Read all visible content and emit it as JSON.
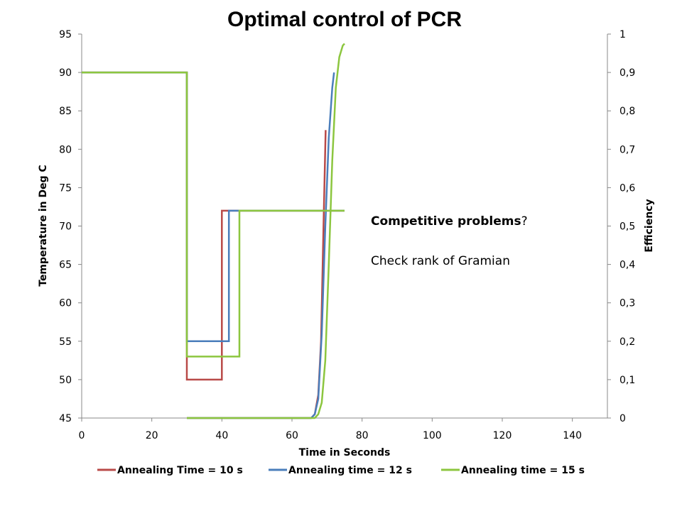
{
  "chart_data": {
    "type": "line",
    "title": "Optimal control of PCR",
    "xlabel": "Time in Seconds",
    "ylabel_left": "Temperature in Deg C",
    "ylabel_right": "Efficiency",
    "xlim": [
      0,
      150
    ],
    "ylim_left": [
      45,
      95
    ],
    "ylim_right": [
      0,
      1
    ],
    "x_ticks": [
      "0",
      "20",
      "40",
      "60",
      "80",
      "100",
      "120",
      "140"
    ],
    "y_ticks_left": [
      "45",
      "50",
      "55",
      "60",
      "65",
      "70",
      "75",
      "80",
      "85",
      "90",
      "95"
    ],
    "y_ticks_right": [
      "0",
      "0,1",
      "0,2",
      "0,3",
      "0,4",
      "0,5",
      "0,6",
      "0,7",
      "0,8",
      "0,9",
      "1"
    ],
    "grid": false,
    "legend_position": "bottom",
    "annotations": {
      "line1_bold": "Competitive problems",
      "line1_rest": "?",
      "line2": "Check rank of Gramian"
    },
    "series": [
      {
        "name": "Annealing Time = 10 s",
        "color": "#b94a48",
        "axis": "left",
        "temperature": {
          "x": [
            0,
            30,
            30,
            40,
            40,
            75
          ],
          "y": [
            90,
            90,
            50,
            50,
            72,
            72
          ]
        },
        "efficiency": {
          "x": [
            30,
            65.5,
            66.5,
            67.5,
            68.3,
            69,
            69.6
          ],
          "y": [
            0,
            0,
            0.01,
            0.06,
            0.2,
            0.5,
            0.75
          ]
        }
      },
      {
        "name": "Annealing time = 12 s",
        "color": "#4a7ebb",
        "axis": "left",
        "temperature": {
          "x": [
            0,
            30,
            30,
            42,
            42,
            75
          ],
          "y": [
            90,
            90,
            55,
            55,
            72,
            72
          ]
        },
        "efficiency": {
          "x": [
            30,
            65.5,
            66.5,
            67.5,
            68.5,
            69.5,
            70.5,
            71.5,
            72
          ],
          "y": [
            0,
            0,
            0.01,
            0.05,
            0.22,
            0.5,
            0.73,
            0.86,
            0.9
          ]
        }
      },
      {
        "name": "Annealing time = 15 s",
        "color": "#8cc63f",
        "axis": "left",
        "temperature": {
          "x": [
            0,
            30,
            30,
            45,
            45,
            75
          ],
          "y": [
            90,
            90,
            53,
            53,
            72,
            72
          ]
        },
        "efficiency": {
          "x": [
            30,
            66.5,
            67.5,
            68.5,
            69.5,
            70.5,
            71.5,
            72.5,
            73.5,
            74.5,
            75
          ],
          "y": [
            0,
            0,
            0.01,
            0.04,
            0.15,
            0.4,
            0.67,
            0.86,
            0.94,
            0.97,
            0.975
          ]
        }
      }
    ]
  }
}
